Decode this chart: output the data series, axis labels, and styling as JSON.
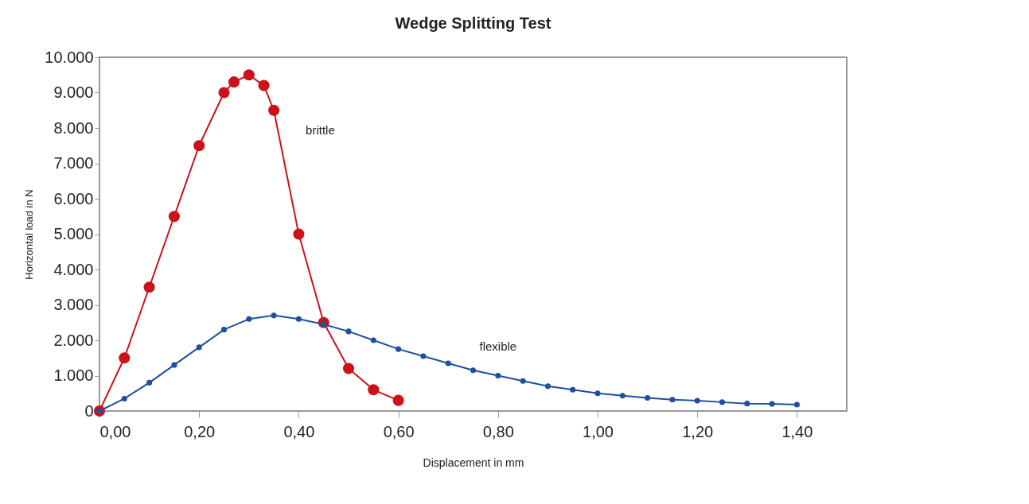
{
  "chart_data": {
    "type": "line",
    "title": "Wedge Splitting Test",
    "xlabel": "Displacement in mm",
    "ylabel": "Horizontal load in N",
    "xlim": [
      0,
      1.5
    ],
    "ylim": [
      0,
      10000
    ],
    "xticks": [
      {
        "value": 0,
        "label": "0,00"
      },
      {
        "value": 0.2,
        "label": "0,20"
      },
      {
        "value": 0.4,
        "label": "0,40"
      },
      {
        "value": 0.6,
        "label": "0,60"
      },
      {
        "value": 0.8,
        "label": "0,80"
      },
      {
        "value": 1,
        "label": "1,00"
      },
      {
        "value": 1.2,
        "label": "1,20"
      },
      {
        "value": 1.4,
        "label": "1,40"
      }
    ],
    "yticks": [
      0,
      {
        "value": 1000,
        "label": "1.000"
      },
      {
        "value": 2000,
        "label": "2.000"
      },
      {
        "value": 3000,
        "label": "3.000"
      },
      {
        "value": 4000,
        "label": "4.000"
      },
      {
        "value": 5000,
        "label": "5.000"
      },
      {
        "value": 6000,
        "label": "6.000"
      },
      {
        "value": 7000,
        "label": "7.000"
      },
      {
        "value": 8000,
        "label": "8.000"
      },
      {
        "value": 9000,
        "label": "9.000"
      },
      {
        "value": 10000,
        "label": "10.000"
      }
    ],
    "grid": false,
    "marker": "circle",
    "line_style": "solid",
    "series": [
      {
        "name": "flexible",
        "color": "#1f4fa0",
        "x": [
          0,
          0.05,
          0.1,
          0.15,
          0.2,
          0.25,
          0.3,
          0.35,
          0.4,
          0.45,
          0.5,
          0.55,
          0.6,
          0.65,
          0.7,
          0.75,
          0.8,
          0.85,
          0.9,
          0.95,
          1,
          1.05,
          1.1,
          1.15,
          1.2,
          1.25,
          1.3,
          1.35,
          1.4
        ],
        "values": [
          0,
          350,
          800,
          1300,
          1800,
          2300,
          2600,
          2700,
          2600,
          2450,
          2250,
          2000,
          1750,
          1550,
          1350,
          1150,
          1000,
          850,
          700,
          600,
          500,
          430,
          370,
          320,
          290,
          250,
          210,
          200,
          180
        ]
      },
      {
        "name": "brittle",
        "color": "#cc1118",
        "x": [
          0,
          0.05,
          0.1,
          0.15,
          0.2,
          0.25,
          0.27,
          0.3,
          0.33,
          0.35,
          0.4,
          0.45,
          0.5,
          0.55,
          0.6
        ],
        "values": [
          0,
          1500,
          3500,
          5500,
          7500,
          9000,
          9300,
          9500,
          9200,
          8500,
          5000,
          2500,
          1200,
          600,
          300
        ]
      }
    ]
  }
}
